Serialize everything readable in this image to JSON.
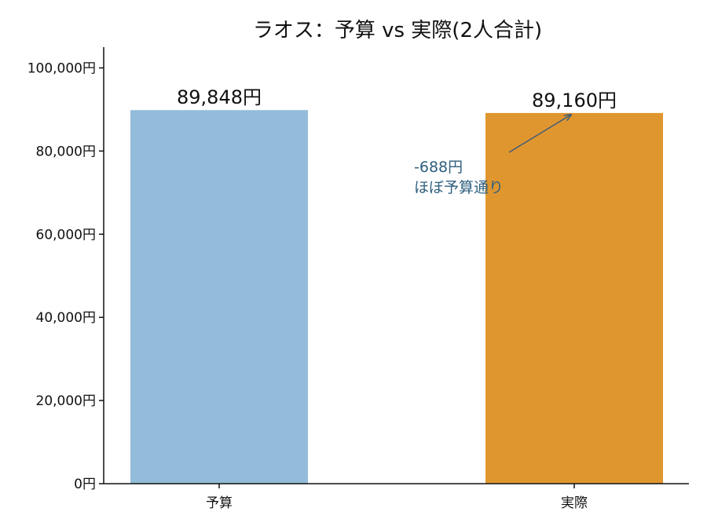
{
  "chart_data": {
    "type": "bar",
    "title": "ラオス：予算 vs 実際(2人合計)",
    "categories": [
      "予算",
      "実際"
    ],
    "values": [
      89848,
      89160
    ],
    "value_labels": [
      "89,848円",
      "89,160円"
    ],
    "colors": [
      "#92bcd9",
      "#e0962f"
    ],
    "ylim": [
      0,
      105000
    ],
    "yticks": [
      0,
      20000,
      40000,
      60000,
      80000,
      100000
    ],
    "ytick_labels": [
      "0円",
      "20,000円",
      "40,000円",
      "60,000円",
      "80,000円",
      "100,000円"
    ],
    "grid": false,
    "annotation": {
      "lines": [
        "-688円",
        "ほぼ予算通り"
      ],
      "color": "#2f5f7f",
      "target_category": "実際",
      "target_value": 89160
    }
  }
}
